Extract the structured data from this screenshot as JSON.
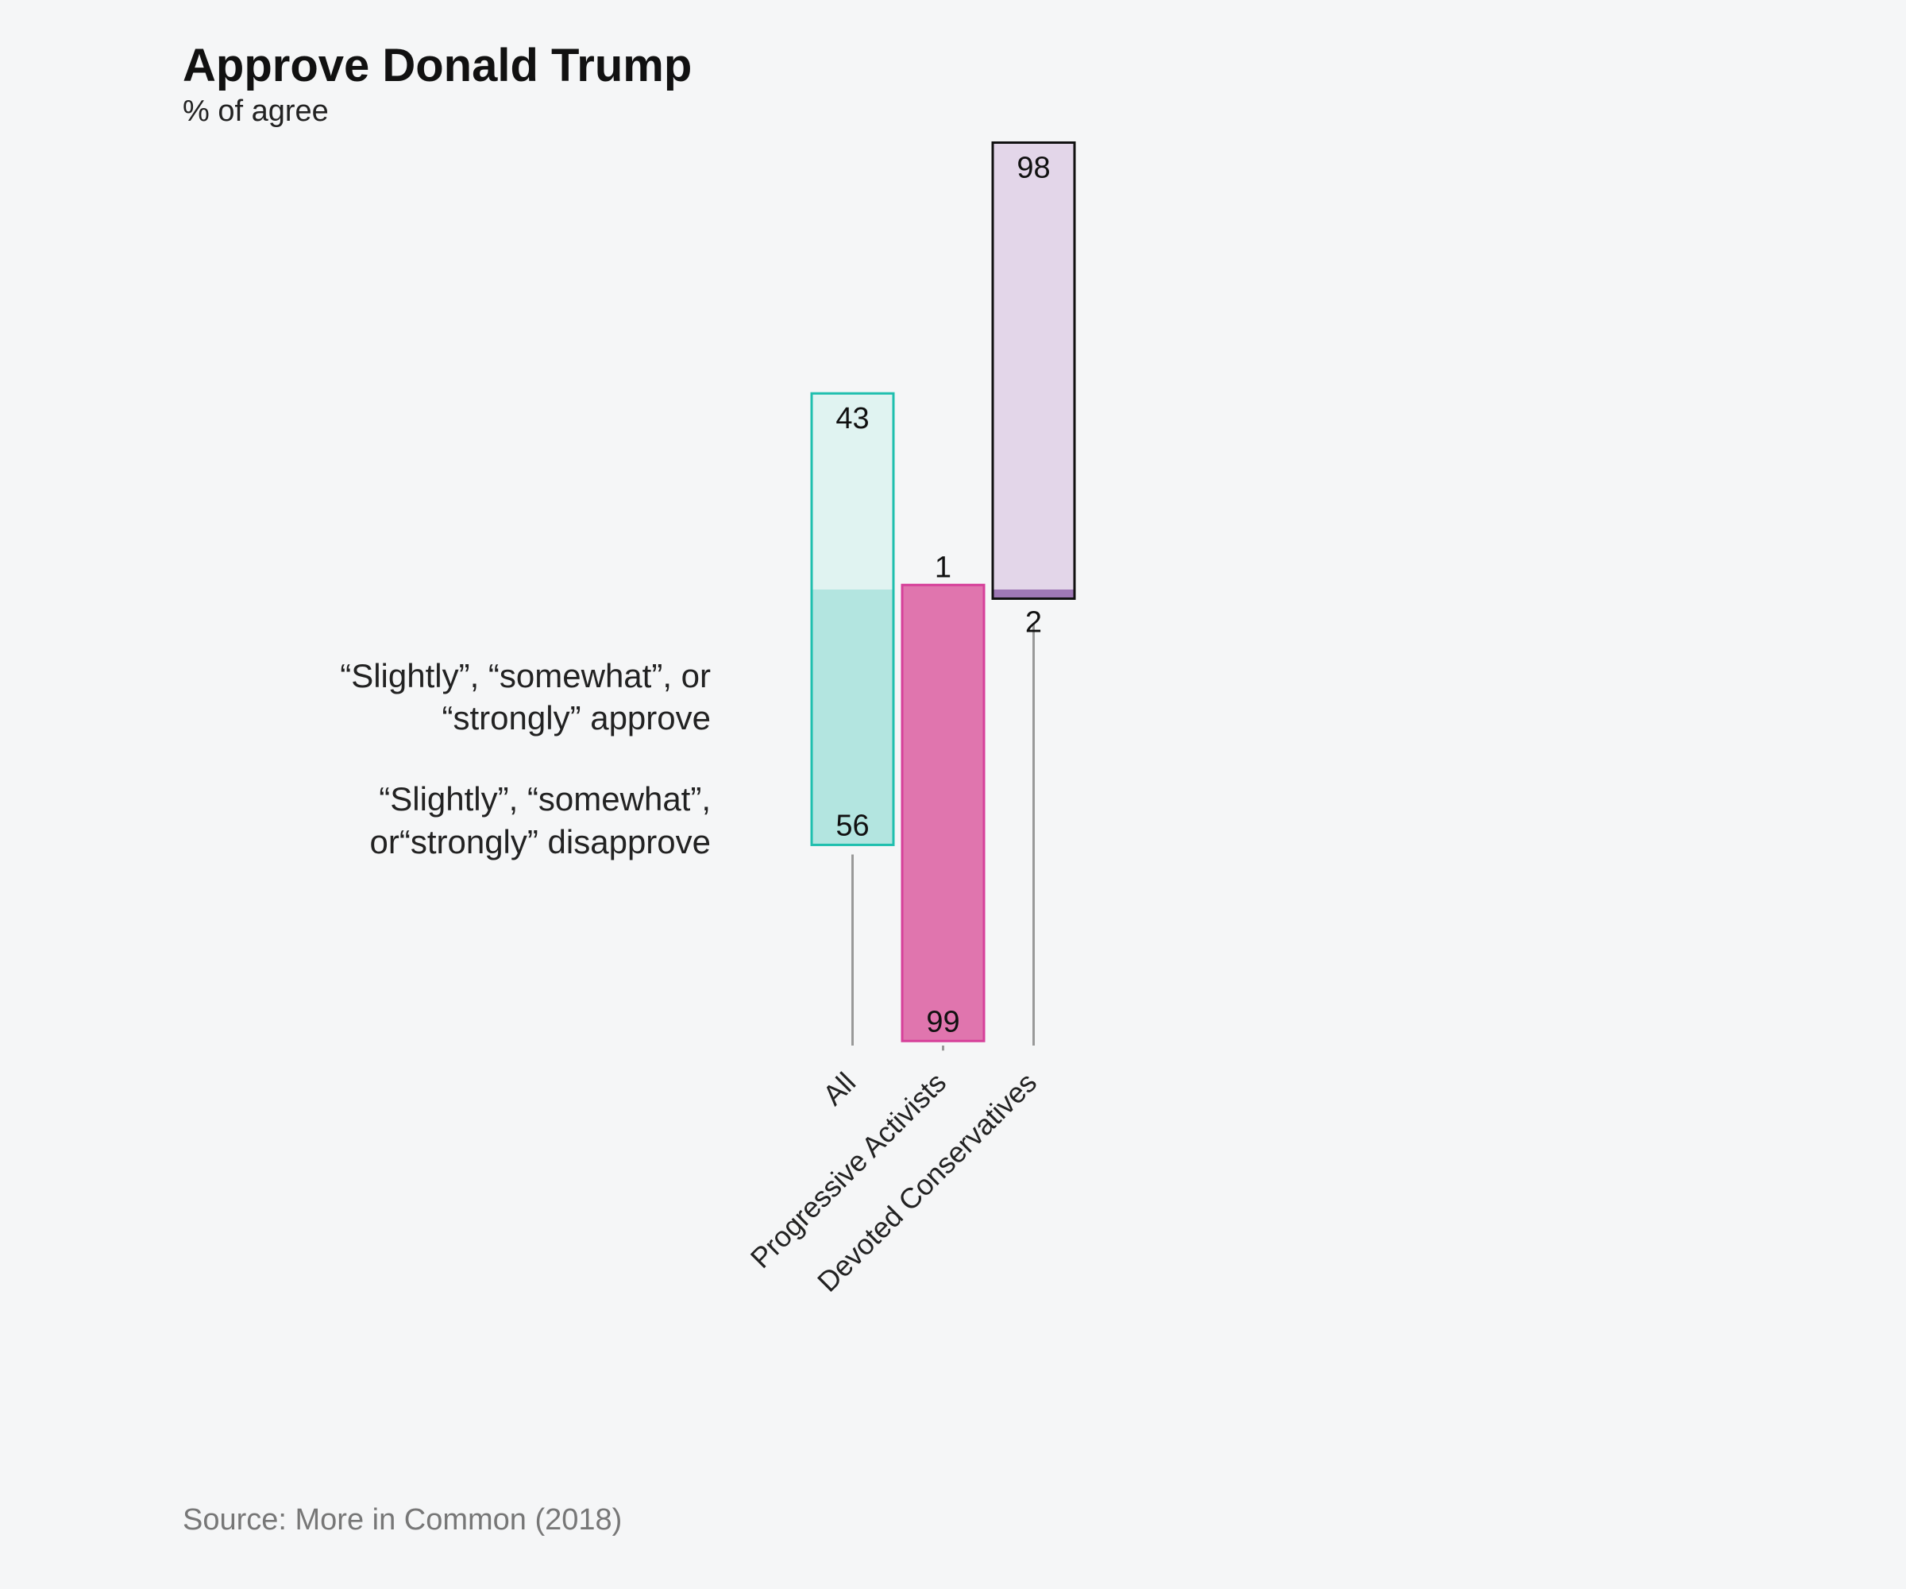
{
  "chart_data": {
    "type": "bar",
    "title": "Approve Donald Trump",
    "subtitle": "% of agree",
    "categories": [
      "All",
      "Progressive Activists",
      "Devoted Conservatives"
    ],
    "series": [
      {
        "name": "“Slightly”, “somewhat”, or “strongly” approve",
        "values": [
          43,
          1,
          98
        ]
      },
      {
        "name": "“Slightly”, “somewhat”, or“strongly” disapprove",
        "values": [
          56,
          99,
          2
        ]
      }
    ],
    "legend_lines": {
      "approve": [
        "“Slightly”, “somewhat”, or",
        "“strongly” approve"
      ],
      "disapprove": [
        "“Slightly”, “somewhat”,",
        "or“strongly” disapprove"
      ]
    },
    "colors": {
      "All": {
        "approve": "#e0f3f1",
        "disapprove": "#b3e5e0",
        "border": "#1fbfae"
      },
      "Progressive Activists": {
        "approve": "#e075ae",
        "disapprove": "#e075ae",
        "border": "#d6409a"
      },
      "Devoted Conservatives": {
        "approve": "#e3d6e9",
        "disapprove": "#9e78b5",
        "border": "#111111"
      }
    },
    "source": "Source: More in Common (2018)"
  }
}
